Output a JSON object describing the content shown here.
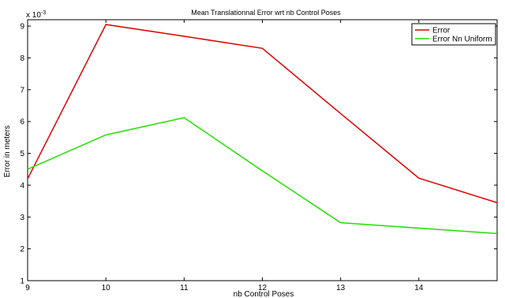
{
  "chart_data": {
    "type": "line",
    "title": "Mean Translationnal Error wrt nb Control Poses",
    "xlabel": "nb Control Poses",
    "ylabel": "Error in meters",
    "y_exponent_label": "x 10",
    "y_exponent": "-3",
    "xlim": [
      9,
      15
    ],
    "ylim": [
      1,
      9.2
    ],
    "x_ticks": [
      9,
      10,
      11,
      12,
      13,
      14
    ],
    "y_ticks": [
      1,
      2,
      3,
      4,
      5,
      6,
      7,
      8,
      9
    ],
    "legend_position": "top-right",
    "grid": false,
    "x": [
      9,
      10,
      11,
      12,
      13,
      14,
      15
    ],
    "series": [
      {
        "name": "Error",
        "color": "#e00000",
        "values": [
          4.2,
          9.05,
          8.68,
          8.3,
          6.25,
          4.22,
          3.45
        ]
      },
      {
        "name": "Error Nn Uniform",
        "color": "#20e000",
        "values": [
          4.5,
          5.58,
          6.12,
          4.45,
          2.82,
          2.65,
          2.48
        ]
      }
    ]
  }
}
